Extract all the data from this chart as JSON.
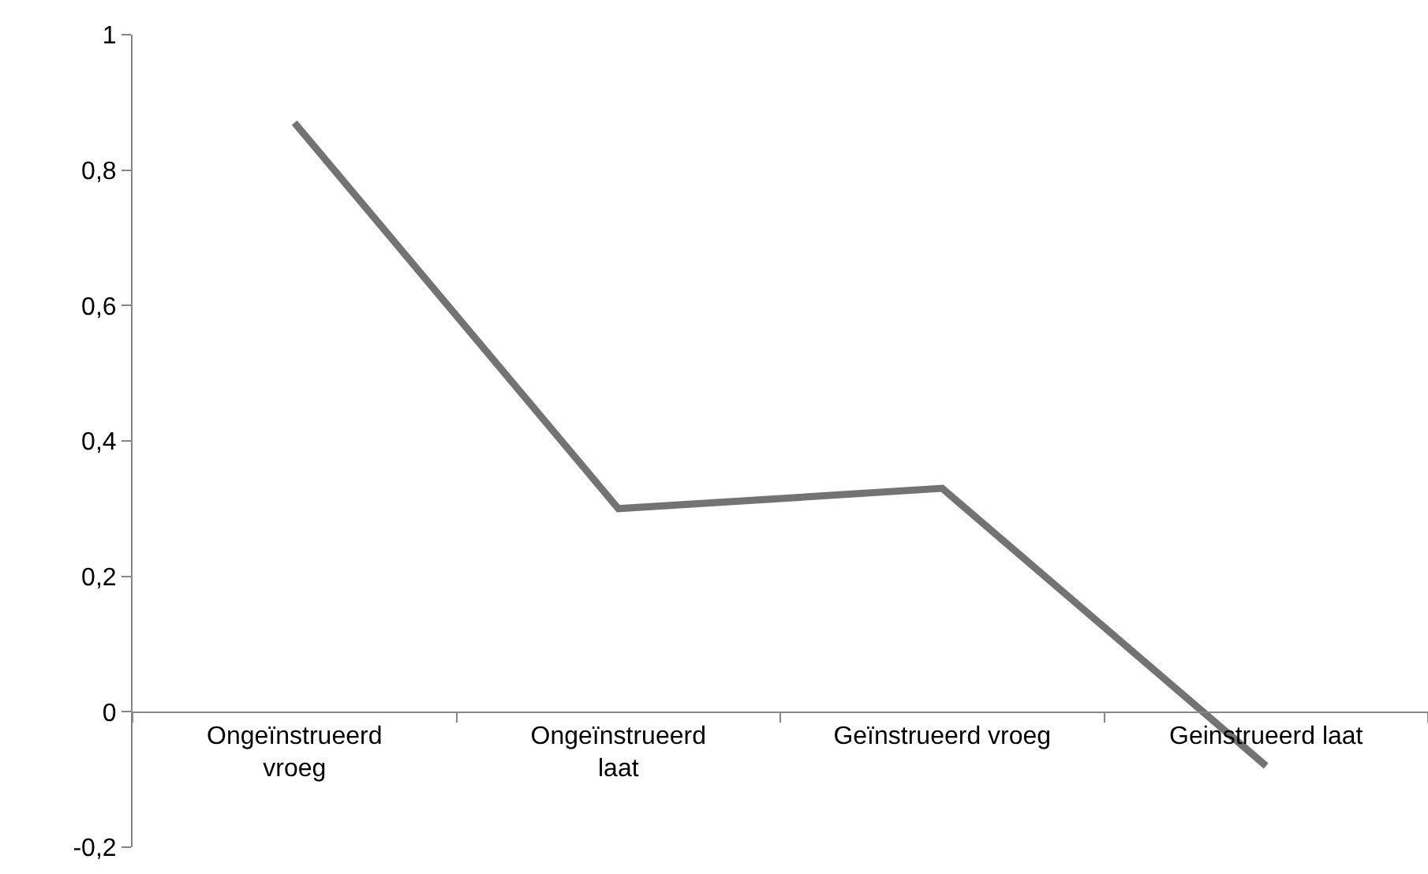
{
  "chart_data": {
    "type": "line",
    "categories": [
      "Ongeïnstrueerd vroeg",
      "Ongeïnstrueerd laat",
      "Geïnstrueerd vroeg",
      "Geinstrueerd laat"
    ],
    "series": [
      {
        "color": "#737373",
        "values": [
          0.87,
          0.3,
          0.33,
          -0.08
        ]
      }
    ],
    "ylim": [
      -0.2,
      1
    ],
    "yticks": [
      {
        "value": -0.2,
        "label": "-0,2"
      },
      {
        "value": 0,
        "label": "0"
      },
      {
        "value": 0.2,
        "label": "0,2"
      },
      {
        "value": 0.4,
        "label": "0,4"
      },
      {
        "value": 0.6,
        "label": "0,6"
      },
      {
        "value": 0.8,
        "label": "0,8"
      },
      {
        "value": 1,
        "label": "1"
      }
    ],
    "grid": false,
    "marker": "none",
    "line_style": "solid"
  }
}
